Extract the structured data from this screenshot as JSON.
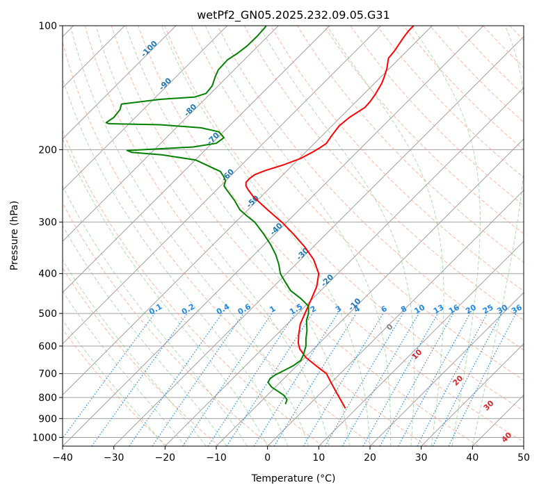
{
  "chart_data": {
    "type": "line",
    "title": "wetPf2_GN05.2025.232.09.05.G31",
    "xlabel": "Temperature (°C)",
    "ylabel": "Pressure (hPa)",
    "xlim": [
      -40,
      50
    ],
    "ylim": [
      1050,
      100
    ],
    "y_scale": "log",
    "grid": true,
    "x_ticks": [
      "−40",
      "−30",
      "−20",
      "−10",
      "0",
      "10",
      "20",
      "30",
      "40",
      "50"
    ],
    "y_ticks": [
      "100",
      "200",
      "300",
      "400",
      "500",
      "600",
      "700",
      "800",
      "900",
      "1000"
    ],
    "colors": {
      "temperature": "#ff0000",
      "dewpoint": "#008000",
      "isotherm": "#a0a0a0",
      "dry_adiabat": "#ff9f80",
      "moist_adiabat": "#6fbf6f",
      "mixing_ratio": "#1e88e5",
      "theta_e_labels": "#d62728",
      "isotherm_labels": "#1f77b4",
      "zero_label": "#808080"
    },
    "mixing_ratio_labels": [
      "0.1",
      "0.2",
      "0.4",
      "0.6",
      "1",
      "1.5",
      "2",
      "3",
      "4",
      "6",
      "8",
      "10",
      "13",
      "16",
      "20",
      "25",
      "30",
      "36"
    ],
    "isotherm_labels": [
      "-100",
      "-90",
      "-80",
      "-70",
      "-60",
      "-50",
      "-40",
      "-30",
      "-20",
      "-10"
    ],
    "zero_label": "0",
    "theta_e_labels": [
      "10",
      "20",
      "30",
      "40"
    ],
    "series": [
      {
        "name": "Temperature",
        "color": "#ff0000",
        "points": [
          [
            15.2,
            850
          ],
          [
            14.5,
            820
          ],
          [
            13.5,
            780
          ],
          [
            12.5,
            740
          ],
          [
            11.5,
            700
          ],
          [
            9.5,
            670
          ],
          [
            7.5,
            640
          ],
          [
            6.3,
            610
          ],
          [
            6.0,
            590
          ],
          [
            6.1,
            560
          ],
          [
            6.4,
            530
          ],
          [
            7.3,
            500
          ],
          [
            8.6,
            460
          ],
          [
            9.6,
            430
          ],
          [
            10.0,
            400
          ],
          [
            9.0,
            370
          ],
          [
            7.3,
            345
          ],
          [
            5.0,
            320
          ],
          [
            2.8,
            300
          ],
          [
            0.0,
            280
          ],
          [
            -2.8,
            260
          ],
          [
            -3.8,
            250
          ],
          [
            -4.2,
            245
          ],
          [
            -4.2,
            240
          ],
          [
            -3.5,
            235
          ],
          [
            -2.5,
            230
          ],
          [
            -0.5,
            225
          ],
          [
            3.0,
            218
          ],
          [
            6.5,
            210
          ],
          [
            8.7,
            203
          ],
          [
            10.2,
            198
          ],
          [
            11.5,
            193
          ],
          [
            12.5,
            185
          ],
          [
            14.0,
            175
          ],
          [
            16.0,
            167
          ],
          [
            19.0,
            158
          ],
          [
            20.0,
            153
          ],
          [
            21.0,
            147
          ],
          [
            22.3,
            138
          ],
          [
            22.8,
            133
          ],
          [
            23.3,
            127
          ],
          [
            23.6,
            120
          ],
          [
            24.8,
            115
          ],
          [
            26.5,
            107
          ],
          [
            27.5,
            103
          ],
          [
            28.5,
            100
          ]
        ]
      },
      {
        "name": "Dewpoint",
        "color": "#008000",
        "points": [
          [
            3.5,
            830
          ],
          [
            3.8,
            810
          ],
          [
            3.2,
            790
          ],
          [
            2.2,
            775
          ],
          [
            0.8,
            755
          ],
          [
            0.1,
            735
          ],
          [
            0.5,
            720
          ],
          [
            1.5,
            705
          ],
          [
            3.5,
            685
          ],
          [
            5.0,
            670
          ],
          [
            6.5,
            650
          ],
          [
            7.0,
            630
          ],
          [
            7.5,
            600
          ],
          [
            7.5,
            575
          ],
          [
            7.7,
            550
          ],
          [
            7.6,
            520
          ],
          [
            8.0,
            500
          ],
          [
            8.0,
            480
          ],
          [
            6.5,
            460
          ],
          [
            4.5,
            440
          ],
          [
            3.5,
            420
          ],
          [
            2.5,
            400
          ],
          [
            2.2,
            380
          ],
          [
            1.6,
            360
          ],
          [
            0.6,
            340
          ],
          [
            -0.8,
            320
          ],
          [
            -2.5,
            300
          ],
          [
            -4.0,
            290
          ],
          [
            -5.4,
            280
          ],
          [
            -6.5,
            265
          ],
          [
            -8.0,
            250
          ],
          [
            -8.5,
            245
          ],
          [
            -8.2,
            238
          ],
          [
            -8.6,
            232
          ],
          [
            -9.2,
            226
          ],
          [
            -14.0,
            212
          ],
          [
            -20.5,
            206
          ],
          [
            -26.5,
            203
          ],
          [
            -27.4,
            201
          ],
          [
            -21.0,
            199
          ],
          [
            -14.5,
            197
          ],
          [
            -10.0,
            193
          ],
          [
            -8.5,
            187
          ],
          [
            -9.5,
            181
          ],
          [
            -13.0,
            177
          ],
          [
            -21.0,
            174
          ],
          [
            -31.0,
            173
          ],
          [
            -31.5,
            172
          ],
          [
            -30.0,
            167
          ],
          [
            -28.8,
            160
          ],
          [
            -28.5,
            155
          ],
          [
            -21.0,
            151
          ],
          [
            -14.2,
            149
          ],
          [
            -12.0,
            146
          ],
          [
            -10.8,
            140
          ],
          [
            -10.2,
            133
          ],
          [
            -9.6,
            128
          ],
          [
            -7.8,
            121
          ],
          [
            -6.0,
            117
          ],
          [
            -4.0,
            112
          ],
          [
            -2.0,
            106
          ],
          [
            -0.5,
            101
          ],
          [
            -0.3,
            100
          ]
        ]
      }
    ]
  }
}
